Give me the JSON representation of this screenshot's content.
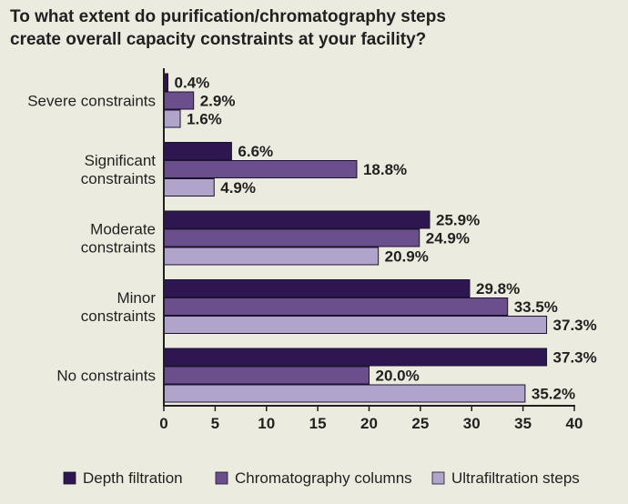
{
  "title_lines": [
    "To what extent do purification/chromatography steps",
    "create overall capacity constraints at your facility?"
  ],
  "chart_data": {
    "type": "bar",
    "orientation": "horizontal",
    "title": "To what extent do purification/chromatography steps create overall capacity constraints at your facility?",
    "categories": [
      [
        "Severe constraints"
      ],
      [
        "Significant",
        "constraints"
      ],
      [
        "Moderate",
        "constraints"
      ],
      [
        "Minor",
        "constraints"
      ],
      [
        "No constraints"
      ]
    ],
    "series": [
      {
        "name": "Depth filtration",
        "color": "#2e1650",
        "values": [
          0.4,
          6.6,
          25.9,
          29.8,
          37.3
        ],
        "labels": [
          "0.4%",
          "6.6%",
          "25.9%",
          "29.8%",
          "37.3%"
        ]
      },
      {
        "name": "Chromatography columns",
        "color": "#6a4f8c",
        "values": [
          2.9,
          18.8,
          24.9,
          33.5,
          20.0
        ],
        "labels": [
          "2.9%",
          "18.8%",
          "24.9%",
          "33.5%",
          "20.0%"
        ]
      },
      {
        "name": "Ultrafiltration steps",
        "color": "#b1a4cb",
        "values": [
          1.6,
          4.9,
          20.9,
          37.3,
          35.2
        ],
        "labels": [
          "1.6%",
          "4.9%",
          "20.9%",
          "37.3%",
          "35.2%"
        ]
      }
    ],
    "xlim": [
      0,
      40
    ],
    "xticks": [
      0,
      5,
      10,
      15,
      20,
      25,
      30,
      35,
      40
    ],
    "xticklabels": [
      "0",
      "5",
      "10",
      "15",
      "20",
      "25",
      "30",
      "35",
      "40"
    ],
    "xlabel": "",
    "ylabel": "",
    "legend_position": "bottom",
    "grid": false
  }
}
